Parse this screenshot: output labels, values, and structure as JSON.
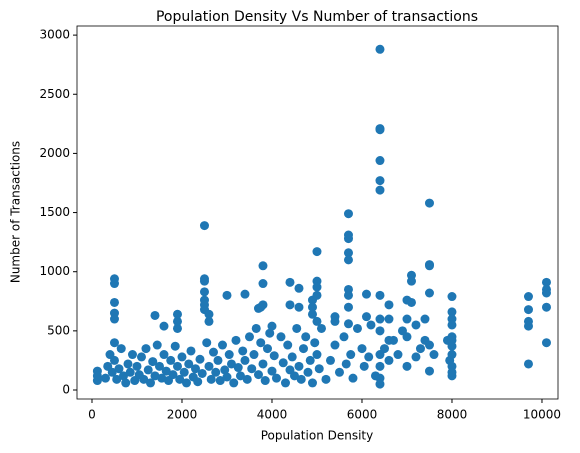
{
  "chart_data": {
    "type": "scatter",
    "title": "Population Density Vs Number of transactions",
    "xlabel": "Population Density",
    "ylabel": "Number of Transactions",
    "color": "#1f77b4",
    "xlim": [
      -333,
      10356
    ],
    "ylim": [
      -76,
      3077
    ],
    "xticks": [
      0,
      2000,
      4000,
      6000,
      8000,
      10000
    ],
    "yticks": [
      0,
      500,
      1000,
      1500,
      2000,
      2500,
      3000
    ],
    "x": [
      120,
      120,
      120,
      300,
      350,
      400,
      450,
      500,
      550,
      600,
      650,
      700,
      750,
      800,
      850,
      900,
      950,
      1000,
      1050,
      1100,
      1150,
      1200,
      1250,
      1300,
      1350,
      1400,
      1450,
      1500,
      1550,
      1600,
      1650,
      1700,
      1750,
      1800,
      1850,
      1900,
      1950,
      2000,
      2050,
      2100,
      2150,
      2200,
      2250,
      2300,
      2350,
      2400,
      2450,
      2550,
      2600,
      2650,
      2700,
      2750,
      2800,
      2850,
      2900,
      2950,
      3000,
      3050,
      3100,
      3150,
      3200,
      3250,
      3300,
      3350,
      3400,
      3450,
      3500,
      3550,
      3600,
      3650,
      3700,
      3750,
      3800,
      3850,
      3900,
      3950,
      4000,
      4050,
      4100,
      4200,
      4250,
      4300,
      4350,
      4400,
      4450,
      4500,
      4550,
      4600,
      4650,
      4700,
      4750,
      4800,
      4850,
      4900,
      4950,
      5000,
      5050,
      5100,
      5200,
      5300,
      5400,
      5500,
      5600,
      5650,
      5750,
      5800,
      5900,
      6000,
      6050,
      6150,
      6200,
      6300,
      6500,
      6600,
      6700,
      6800,
      6900,
      7000,
      7200,
      7300,
      7600,
      7900,
      7950,
      8000,
      500,
      500,
      500,
      500,
      500,
      500,
      1400,
      1600,
      1900,
      1900,
      1900,
      2500,
      2500,
      2500,
      2500,
      2500,
      2500,
      2500,
      2600,
      2600,
      3000,
      3400,
      3700,
      3750,
      3800,
      3800,
      3800,
      4000,
      4400,
      4400,
      4600,
      4600,
      4900,
      4900,
      4900,
      5000,
      5000,
      5000,
      5000,
      5000,
      5400,
      5400,
      5700,
      5700,
      5700,
      5700,
      5700,
      5700,
      5700,
      5700,
      5700,
      6100,
      6100,
      6400,
      6400,
      6400,
      6400,
      6400,
      6400,
      6400,
      6400,
      6400,
      6400,
      6400,
      6400,
      6400,
      6600,
      6600,
      6600,
      7000,
      7000,
      7000,
      7100,
      7100,
      7100,
      7200,
      7400,
      7400,
      7500,
      7500,
      7500,
      7500,
      7500,
      7500,
      8000,
      8000,
      8000,
      8000,
      8000,
      8000,
      8000,
      8000,
      8000,
      8000,
      9700,
      9700,
      9700,
      9700,
      9700,
      10100,
      10100,
      10100,
      10100,
      10100
    ],
    "values": [
      80,
      160,
      120,
      100,
      200,
      300,
      150,
      250,
      90,
      180,
      350,
      120,
      60,
      220,
      150,
      300,
      80,
      200,
      130,
      280,
      90,
      350,
      170,
      60,
      240,
      120,
      380,
      200,
      100,
      300,
      160,
      80,
      250,
      130,
      370,
      200,
      90,
      280,
      150,
      60,
      220,
      330,
      110,
      180,
      70,
      260,
      140,
      400,
      200,
      90,
      320,
      150,
      250,
      80,
      380,
      170,
      110,
      300,
      220,
      60,
      420,
      190,
      120,
      330,
      250,
      90,
      450,
      180,
      300,
      520,
      130,
      400,
      220,
      80,
      350,
      480,
      160,
      290,
      100,
      450,
      230,
      60,
      380,
      170,
      280,
      120,
      520,
      200,
      90,
      350,
      450,
      150,
      250,
      60,
      400,
      300,
      180,
      520,
      90,
      250,
      380,
      150,
      450,
      220,
      300,
      100,
      520,
      350,
      200,
      280,
      550,
      120,
      350,
      250,
      420,
      300,
      500,
      200,
      280,
      350,
      300,
      420,
      250,
      120,
      940,
      900,
      740,
      650,
      600,
      400,
      630,
      540,
      520,
      580,
      640,
      1390,
      940,
      920,
      830,
      760,
      720,
      680,
      640,
      580,
      800,
      810,
      690,
      700,
      1050,
      900,
      720,
      540,
      910,
      720,
      860,
      700,
      760,
      700,
      640,
      1170,
      920,
      870,
      800,
      580,
      580,
      620,
      1490,
      1310,
      1280,
      1160,
      1100,
      850,
      800,
      700,
      560,
      810,
      620,
      2880,
      2210,
      2200,
      1940,
      1770,
      1690,
      800,
      600,
      500,
      300,
      200,
      100,
      50,
      720,
      600,
      420,
      760,
      600,
      450,
      970,
      920,
      740,
      550,
      600,
      420,
      1580,
      1060,
      1050,
      820,
      380,
      160,
      790,
      660,
      600,
      550,
      450,
      420,
      370,
      300,
      200,
      150,
      790,
      680,
      580,
      540,
      220,
      910,
      850,
      820,
      700,
      400
    ]
  }
}
